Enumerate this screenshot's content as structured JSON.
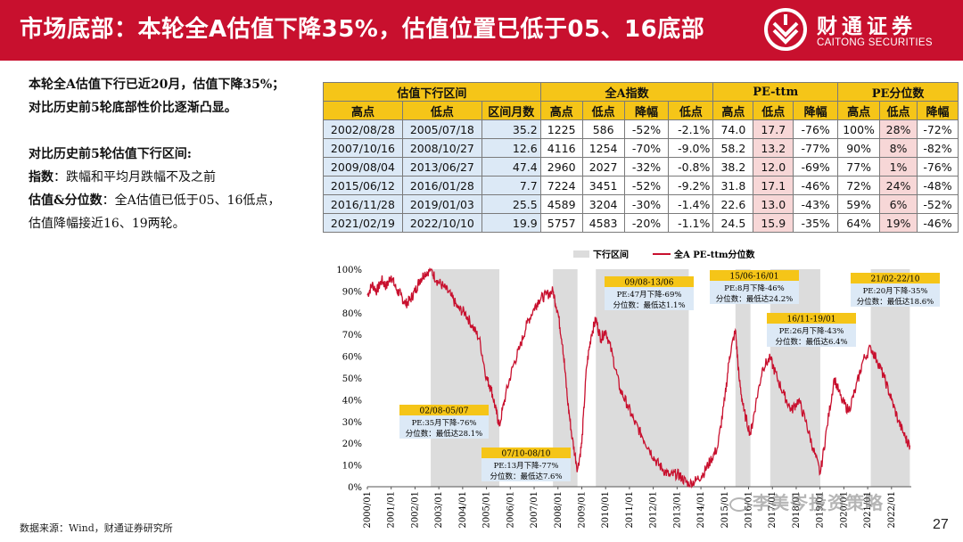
{
  "header": {
    "title": "市场底部：本轮全A估值下降35%，估值位置已低于05、16底部",
    "logo_cn": "财通证券",
    "logo_en": "CAITONG SECURITIES"
  },
  "left": {
    "lines": [
      "本轮全A估值下行已近20月，估值下降35%；",
      "对比历史前5轮底部性价比逐渐凸显。"
    ],
    "compare_title": "对比历史前5轮估值下行区间:",
    "index_label": "指数",
    "index_text": "：跌幅和平均月跌幅不及之前",
    "val_label": "估值&分位数",
    "val_text": "：全A估值已低于05、16低点，",
    "val_text2": "估值降幅接近16、19两轮。"
  },
  "table": {
    "groups": [
      "估值下行区间",
      "全A指数",
      "PE-ttm",
      "PE分位数"
    ],
    "cols": [
      "高点",
      "低点",
      "区间月数",
      "高点",
      "低点",
      "降幅",
      "低点",
      "高点",
      "低点",
      "降幅",
      "高点",
      "低点",
      "降幅"
    ],
    "rows": [
      [
        "2002/08/28",
        "2005/07/18",
        "35.2",
        "1225",
        "586",
        "-52%",
        "-2.1%",
        "74.0",
        "17.7",
        "-76%",
        "100%",
        "28%",
        "-72%"
      ],
      [
        "2007/10/16",
        "2008/10/27",
        "12.6",
        "4116",
        "1254",
        "-70%",
        "-9.0%",
        "58.2",
        "13.2",
        "-77%",
        "90%",
        "8%",
        "-82%"
      ],
      [
        "2009/08/04",
        "2013/06/27",
        "47.4",
        "2960",
        "2027",
        "-32%",
        "-0.8%",
        "38.2",
        "12.0",
        "-69%",
        "77%",
        "1%",
        "-76%"
      ],
      [
        "2015/06/12",
        "2016/01/28",
        "7.7",
        "7224",
        "3451",
        "-52%",
        "-9.2%",
        "31.8",
        "17.1",
        "-46%",
        "72%",
        "24%",
        "-48%"
      ],
      [
        "2016/11/28",
        "2019/01/03",
        "25.5",
        "4589",
        "3204",
        "-30%",
        "-1.4%",
        "22.6",
        "13.0",
        "-43%",
        "59%",
        "6%",
        "-52%"
      ],
      [
        "2021/02/19",
        "2022/10/10",
        "19.9",
        "5757",
        "4583",
        "-20%",
        "-1.1%",
        "24.5",
        "15.9",
        "-35%",
        "64%",
        "19%",
        "-46%"
      ]
    ]
  },
  "chart_data": {
    "type": "line",
    "title": "",
    "legend": [
      "下行区间",
      "全A PE-ttm分位数"
    ],
    "legend_position": "top",
    "ylim": [
      0,
      100
    ],
    "yticks": [
      "0%",
      "10%",
      "20%",
      "30%",
      "40%",
      "50%",
      "60%",
      "70%",
      "80%",
      "90%",
      "100%"
    ],
    "xticks": [
      "2000/01",
      "2001/01",
      "2002/01",
      "2003/01",
      "2004/01",
      "2005/01",
      "2006/01",
      "2007/01",
      "2008/01",
      "2009/01",
      "2010/01",
      "2011/01",
      "2012/01",
      "2013/01",
      "2014/01",
      "2015/01",
      "2016/01",
      "2017/01",
      "2018/01",
      "2019/01",
      "2020/01",
      "2021/01",
      "2022/01"
    ],
    "xlim": [
      2000.0,
      2022.83
    ],
    "series_color": "#c8102e",
    "band_color": "#dcdcdc",
    "bands": [
      [
        2002.66,
        2005.54
      ],
      [
        2007.79,
        2008.82
      ],
      [
        2009.59,
        2013.49
      ],
      [
        2015.45,
        2016.08
      ],
      [
        2016.91,
        2019.01
      ],
      [
        2021.13,
        2022.77
      ]
    ],
    "series": [
      {
        "name": "全A PE-ttm分位数",
        "x": [
          2000.0,
          2000.2,
          2000.4,
          2000.6,
          2000.8,
          2001.0,
          2001.2,
          2001.4,
          2001.6,
          2001.8,
          2002.0,
          2002.2,
          2002.4,
          2002.66,
          2002.9,
          2003.2,
          2003.5,
          2003.8,
          2004.1,
          2004.4,
          2004.7,
          2005.0,
          2005.2,
          2005.4,
          2005.54,
          2005.8,
          2006.1,
          2006.4,
          2006.7,
          2007.0,
          2007.2,
          2007.5,
          2007.79,
          2008.0,
          2008.2,
          2008.4,
          2008.6,
          2008.82,
          2009.0,
          2009.2,
          2009.4,
          2009.59,
          2009.8,
          2010.0,
          2010.3,
          2010.6,
          2010.9,
          2011.2,
          2011.5,
          2011.8,
          2012.1,
          2012.4,
          2012.7,
          2013.0,
          2013.2,
          2013.49,
          2013.8,
          2014.1,
          2014.4,
          2014.7,
          2015.0,
          2015.2,
          2015.45,
          2015.6,
          2015.8,
          2016.08,
          2016.3,
          2016.6,
          2016.91,
          2017.2,
          2017.5,
          2017.8,
          2018.1,
          2018.4,
          2018.7,
          2019.01,
          2019.3,
          2019.6,
          2019.9,
          2020.2,
          2020.5,
          2020.8,
          2021.13,
          2021.4,
          2021.7,
          2022.0,
          2022.3,
          2022.6,
          2022.77
        ],
        "y": [
          88,
          93,
          90,
          95,
          92,
          97,
          91,
          88,
          84,
          86,
          90,
          95,
          98,
          100,
          95,
          92,
          88,
          82,
          80,
          74,
          68,
          50,
          45,
          35,
          28,
          42,
          55,
          64,
          75,
          82,
          86,
          88,
          90,
          80,
          65,
          40,
          22,
          8,
          20,
          55,
          70,
          77,
          68,
          72,
          60,
          45,
          38,
          30,
          24,
          18,
          12,
          8,
          5,
          6,
          4,
          1,
          3,
          6,
          12,
          18,
          40,
          60,
          72,
          50,
          35,
          24,
          38,
          55,
          59,
          50,
          42,
          35,
          40,
          30,
          18,
          6,
          28,
          50,
          40,
          35,
          45,
          58,
          64,
          58,
          50,
          40,
          30,
          22,
          19
        ]
      }
    ],
    "annotations": [
      {
        "period": "02/08-05/07",
        "line1": "PE:35月下降-76%",
        "line2": "分位数：最低达28.1%"
      },
      {
        "period": "07/10-08/10",
        "line1": "PE:13月下降-77%",
        "line2": "分位数：最低达7.6%"
      },
      {
        "period": "09/08-13/06",
        "line1": "PE:47月下降-69%",
        "line2": "分位数：最低达1.1%"
      },
      {
        "period": "15/06-16/01",
        "line1": "PE:8月下降-46%",
        "line2": "分位数：最低达24.2%"
      },
      {
        "period": "16/11-19/01",
        "line1": "PE:26月下降-43%",
        "line2": "分位数：最低达6.4%"
      },
      {
        "period": "21/02-22/10",
        "line1": "PE:20月下降-35%",
        "line2": "分位数：最低达18.6%"
      }
    ]
  },
  "footer": {
    "source": "数据来源：Wind，财通证券研究所",
    "page": "27",
    "watermark": "李美岑投资策略"
  }
}
